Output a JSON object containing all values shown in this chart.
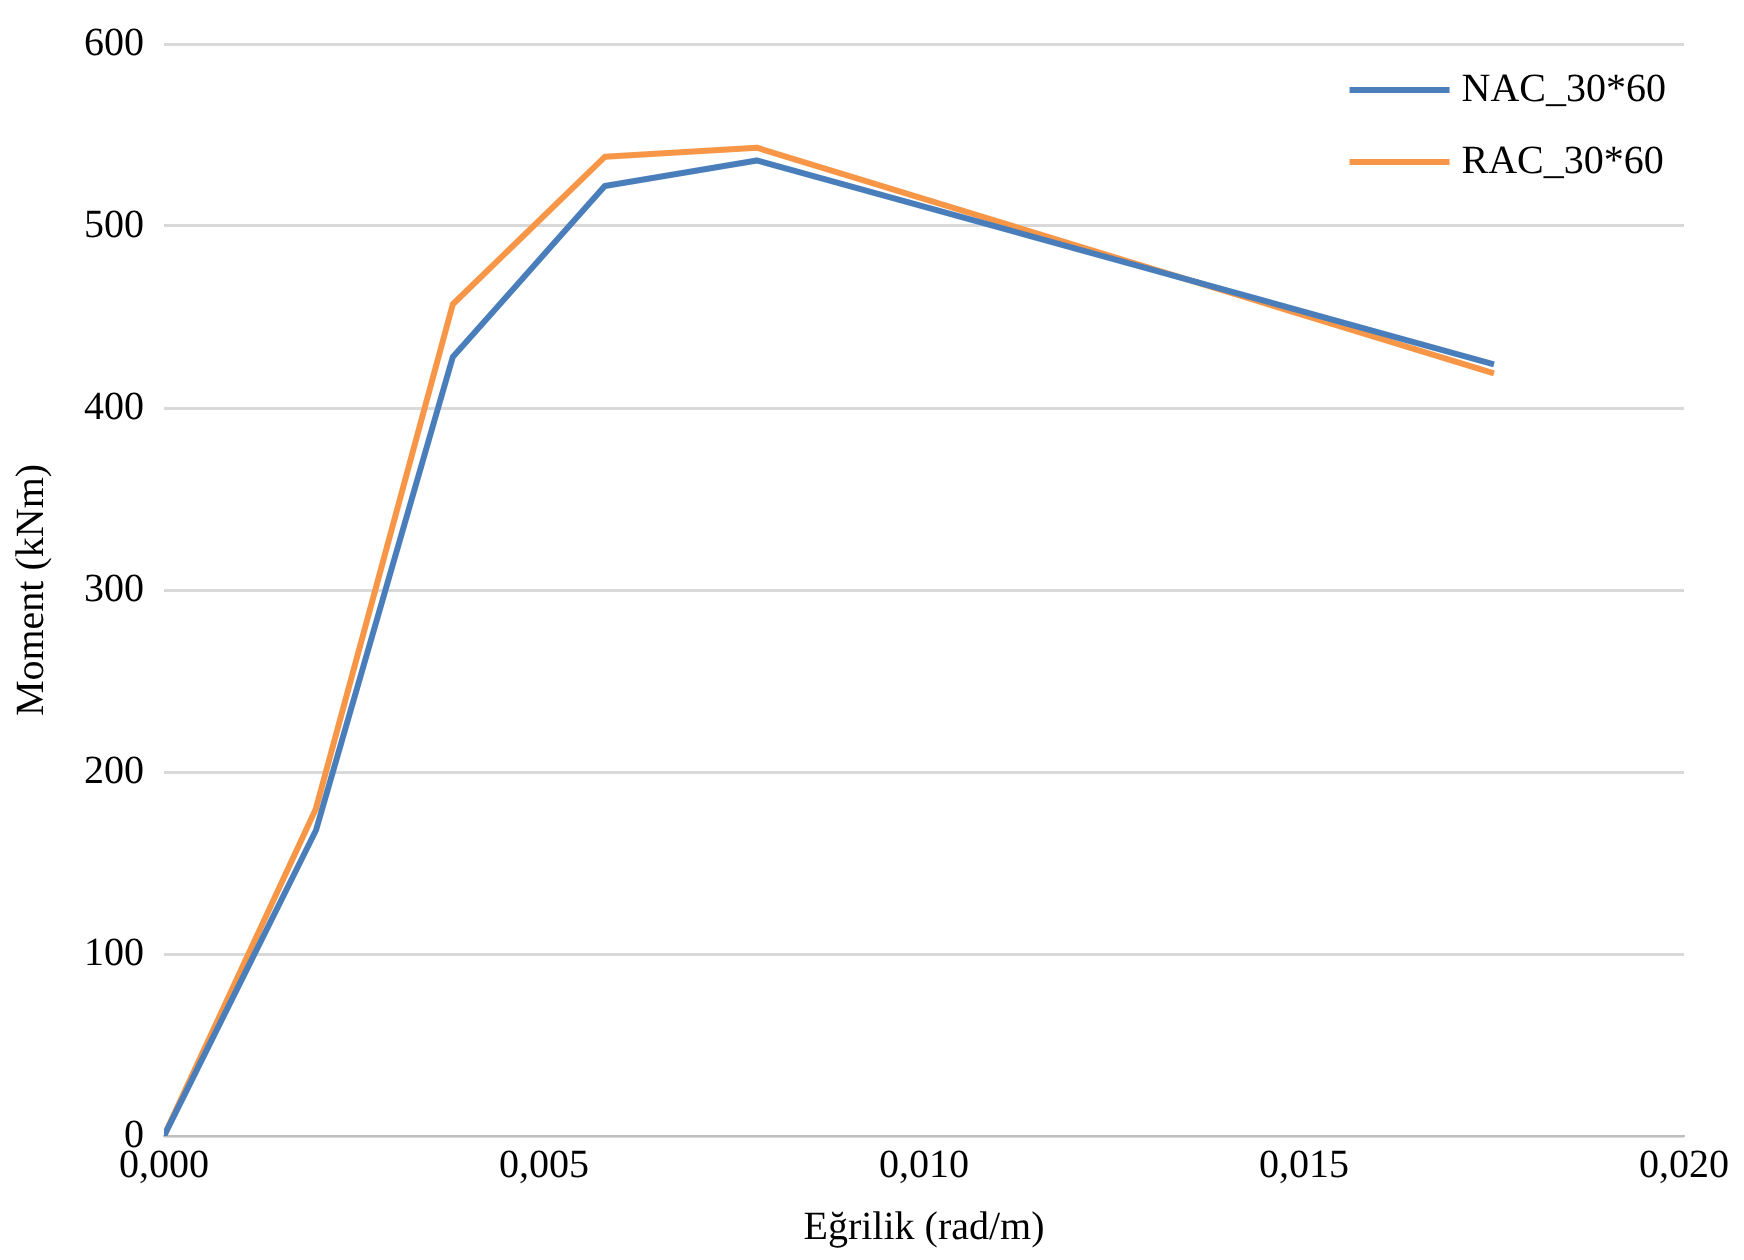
{
  "chart_data": {
    "type": "line",
    "xlabel": "Eğrilik (rad/m)",
    "ylabel": "Moment (kNm)",
    "xlim": [
      0,
      0.02
    ],
    "xticks": [
      {
        "value": 0,
        "label": "0,000"
      },
      {
        "value": 0.005,
        "label": "0,005"
      },
      {
        "value": 0.01,
        "label": "0,010"
      },
      {
        "value": 0.015,
        "label": "0,015"
      },
      {
        "value": 0.02,
        "label": "0,020"
      }
    ],
    "ylim": [
      0,
      600
    ],
    "yticks": [
      0,
      100,
      200,
      300,
      400,
      500,
      600
    ],
    "grid": "y",
    "legend": "top right",
    "marker": "none",
    "line_style": "solid",
    "series": [
      {
        "name": "NAC_30*60",
        "color": "#4a7ebb",
        "x": [
          0,
          0.002,
          0.0038,
          0.0058,
          0.0078,
          0.0175
        ],
        "values": [
          0,
          168,
          428,
          522,
          536,
          424
        ]
      },
      {
        "name": "RAC_30*60",
        "color": "#f79646",
        "x": [
          0,
          0.002,
          0.0038,
          0.0058,
          0.0078,
          0.0175
        ],
        "values": [
          0,
          180,
          457,
          538,
          543,
          419
        ]
      }
    ]
  }
}
